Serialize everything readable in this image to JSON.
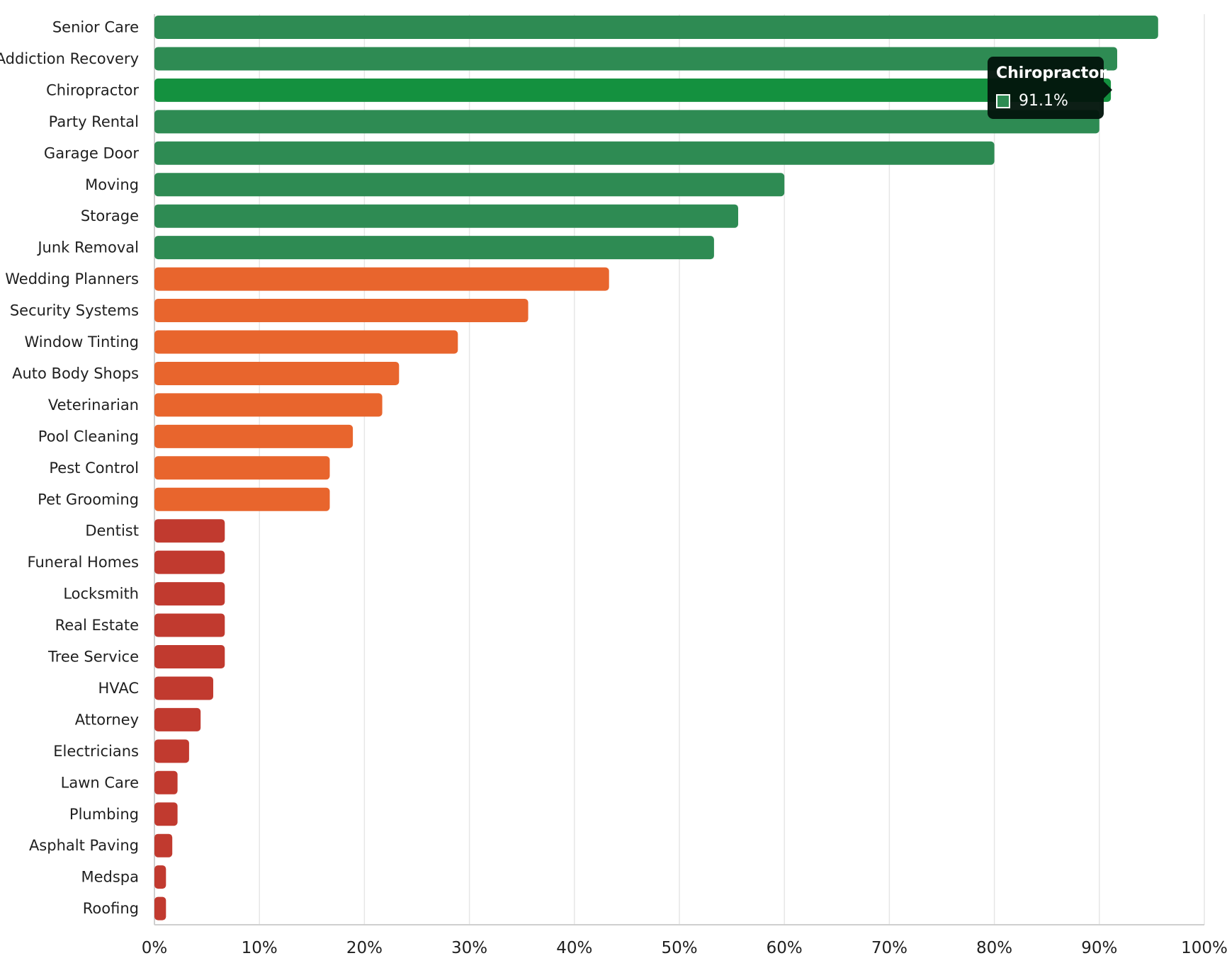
{
  "colors": {
    "high": "#2e8b53",
    "highlight": "#14913f",
    "mid": "#e8652d",
    "low": "#c13a2f",
    "grid": "#e6e6e6",
    "text": "#1f1f1f",
    "tooltip_bg": "#03160c"
  },
  "chart_data": {
    "type": "bar",
    "orientation": "horizontal",
    "title": "",
    "xlabel": "",
    "ylabel": "",
    "xlim": [
      0,
      100
    ],
    "value_format": "percent",
    "grid": true,
    "ticks": [
      "0%",
      "10%",
      "20%",
      "30%",
      "40%",
      "50%",
      "60%",
      "70%",
      "80%",
      "90%",
      "100%"
    ],
    "tick_values": [
      0,
      10,
      20,
      30,
      40,
      50,
      60,
      70,
      80,
      90,
      100
    ],
    "categories": [
      "Senior Care",
      "Addiction Recovery",
      "Chiropractor",
      "Party Rental",
      "Garage Door",
      "Moving",
      "Storage",
      "Junk Removal",
      "Wedding Planners",
      "Security Systems",
      "Window Tinting",
      "Auto Body Shops",
      "Veterinarian",
      "Pool Cleaning",
      "Pest Control",
      "Pet Grooming",
      "Dentist",
      "Funeral Homes",
      "Locksmith",
      "Real Estate",
      "Tree Service",
      "HVAC",
      "Attorney",
      "Electricians",
      "Lawn Care",
      "Plumbing",
      "Asphalt Paving",
      "Medspa",
      "Roofing"
    ],
    "values": [
      95.6,
      91.7,
      91.1,
      90.0,
      80.0,
      60.0,
      55.6,
      53.3,
      43.3,
      35.6,
      28.9,
      23.3,
      21.7,
      18.9,
      16.7,
      16.7,
      6.7,
      6.7,
      6.7,
      6.7,
      6.7,
      5.6,
      4.4,
      3.3,
      2.2,
      2.2,
      1.7,
      1.1,
      1.1
    ],
    "groups": [
      "high",
      "high",
      "high",
      "high",
      "high",
      "high",
      "high",
      "high",
      "mid",
      "mid",
      "mid",
      "mid",
      "mid",
      "mid",
      "mid",
      "mid",
      "low",
      "low",
      "low",
      "low",
      "low",
      "low",
      "low",
      "low",
      "low",
      "low",
      "low",
      "low",
      "low"
    ],
    "highlighted_index": 2
  },
  "tooltip": {
    "title": "Chiropractor",
    "value": "91.1%"
  }
}
